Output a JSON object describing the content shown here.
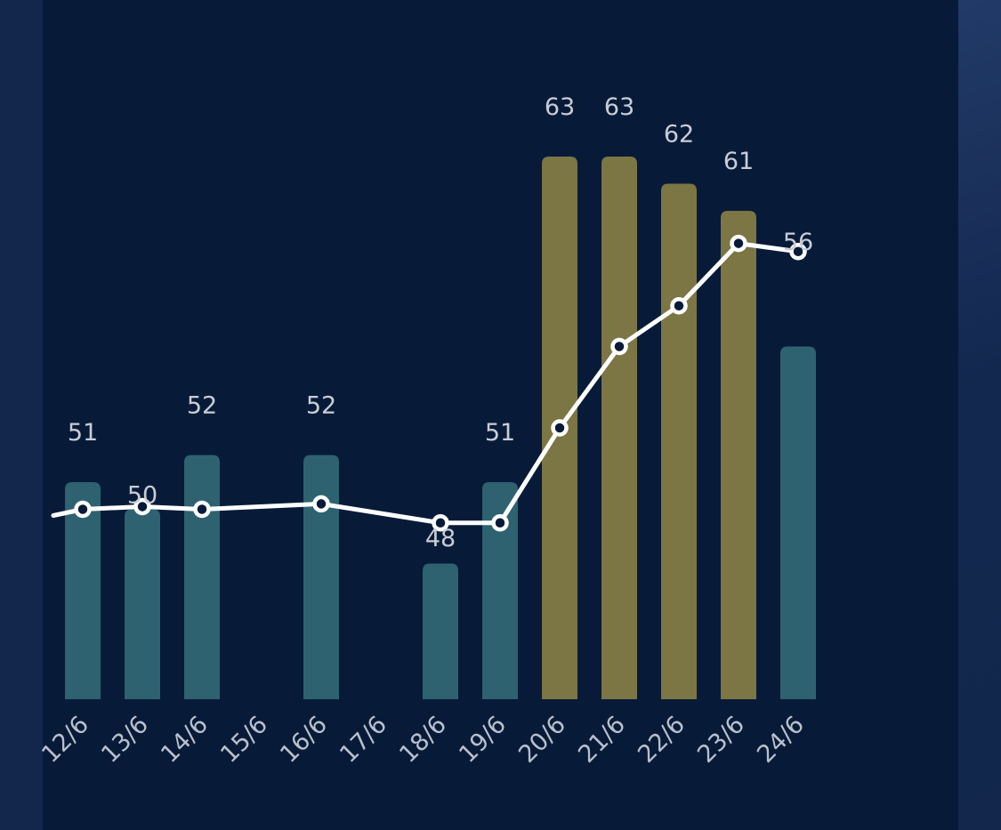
{
  "chart_data": {
    "type": "bar",
    "categories": [
      "12/6",
      "13/6",
      "14/6",
      "15/6",
      "16/6",
      "17/6",
      "18/6",
      "19/6",
      "20/6",
      "21/6",
      "22/6",
      "23/6",
      "24/6"
    ],
    "series": [
      {
        "kind": "bar",
        "values": [
          51,
          50,
          52,
          null,
          52,
          null,
          48,
          51,
          63,
          63,
          62,
          61,
          56
        ],
        "colors": [
          "#2e6270",
          "#2e6270",
          "#2e6270",
          null,
          "#2e6270",
          null,
          "#2e6270",
          "#2e6270",
          "#7c7544",
          "#7c7544",
          "#7c7544",
          "#7c7544",
          "#2e6270"
        ]
      },
      {
        "kind": "line",
        "values": [
          50.0,
          50.1,
          50.0,
          null,
          50.2,
          null,
          49.5,
          49.5,
          53.0,
          56.0,
          57.5,
          59.8,
          59.5
        ],
        "color": "#ffffff"
      }
    ],
    "value_labels": [
      "51",
      "50",
      "52",
      "",
      "52",
      "",
      "48",
      "51",
      "63",
      "63",
      "62",
      "61",
      "56"
    ],
    "ylim": [
      43,
      65
    ],
    "grid": false,
    "legend": "none",
    "colors": {
      "background": "#071b38",
      "bar_normal": "#2e6270",
      "bar_highlight": "#7c7544",
      "line": "#ffffff",
      "label": "#c9ccd6"
    }
  }
}
